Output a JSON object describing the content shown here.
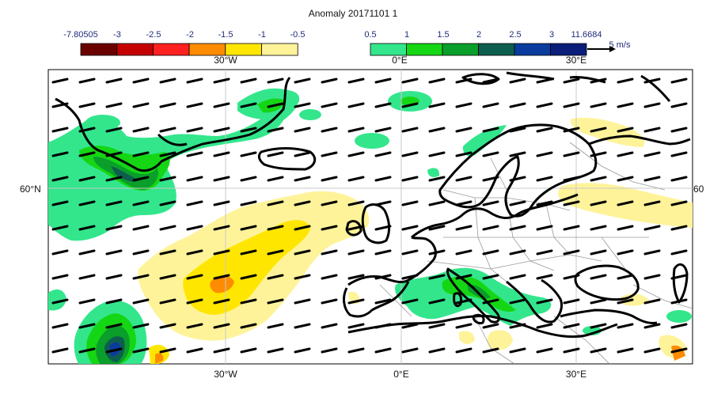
{
  "title": "Anomaly 20171101 1",
  "colorbar_negative": {
    "labels": [
      "-7.80505",
      "-3",
      "-2.5",
      "-2",
      "-1.5",
      "-1",
      "-0.5"
    ],
    "colors": [
      "#6b0000",
      "#c40000",
      "#ff2020",
      "#ff8c00",
      "#ffe600",
      "#fff39a"
    ]
  },
  "colorbar_positive": {
    "labels": [
      "0.5",
      "1",
      "1.5",
      "2",
      "2.5",
      "3",
      "11.6684"
    ],
    "colors": [
      "#33e68c",
      "#15d615",
      "#0a9e2a",
      "#0e5e4e",
      "#0a3c9e",
      "#0b1e7a"
    ]
  },
  "wind_reference": "5 m/s",
  "longitude_labels": [
    "30°W",
    "0°E",
    "30°E"
  ],
  "latitude_labels": {
    "left": "60°N",
    "right": "60"
  },
  "colors": {
    "green_light": "#33e68c",
    "green": "#15d615",
    "green_dark": "#0a9e2a",
    "teal": "#0e5e4e",
    "blue": "#0a3c9e",
    "navy": "#0b1e7a",
    "yellow_light": "#fff39a",
    "yellow": "#ffe600",
    "orange": "#ff8c00",
    "grid": "#c8c8c8",
    "coast": "#000000",
    "borders": "#9a9a9a"
  }
}
